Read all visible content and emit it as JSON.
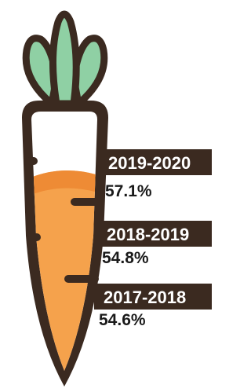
{
  "items": [
    {
      "period": "2019-2020",
      "value": "57.1%"
    },
    {
      "period": "2018-2019",
      "value": "54.8%"
    },
    {
      "period": "2017-2018",
      "value": "54.6%"
    }
  ]
}
